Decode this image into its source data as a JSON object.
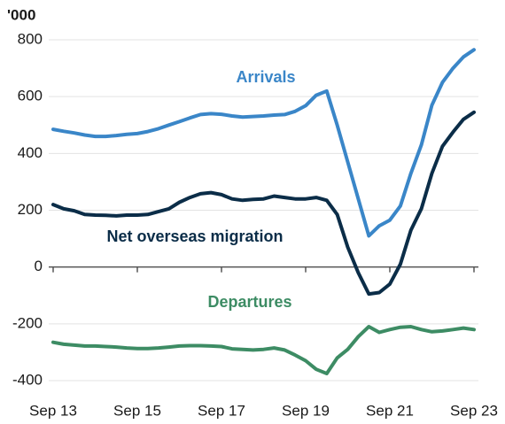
{
  "chart_data": {
    "type": "line",
    "y_label": "'000",
    "categories": [
      "Sep 13",
      null,
      null,
      null,
      null,
      null,
      null,
      null,
      "Sep 15",
      null,
      null,
      null,
      null,
      null,
      null,
      null,
      "Sep 17",
      null,
      null,
      null,
      null,
      null,
      null,
      null,
      "Sep 19",
      null,
      null,
      null,
      null,
      null,
      null,
      null,
      "Sep 21",
      null,
      null,
      null,
      null,
      null,
      null,
      null,
      "Sep 23"
    ],
    "series": [
      {
        "name": "Arrivals",
        "color": "#3a86c8",
        "values": [
          485,
          478,
          472,
          465,
          460,
          460,
          463,
          467,
          470,
          477,
          487,
          500,
          512,
          525,
          537,
          540,
          538,
          532,
          528,
          530,
          532,
          535,
          537,
          548,
          568,
          605,
          620,
          500,
          370,
          240,
          110,
          145,
          165,
          215,
          330,
          430,
          570,
          650,
          700,
          740,
          765
        ]
      },
      {
        "name": "Net overseas migration",
        "color": "#0b2d48",
        "values": [
          220,
          205,
          198,
          185,
          183,
          182,
          180,
          183,
          183,
          185,
          195,
          205,
          228,
          245,
          258,
          262,
          255,
          240,
          235,
          238,
          240,
          250,
          245,
          240,
          240,
          245,
          235,
          185,
          70,
          -20,
          -95,
          -90,
          -60,
          10,
          130,
          205,
          330,
          425,
          475,
          520,
          545
        ]
      },
      {
        "name": "Departures",
        "color": "#3d8c64",
        "values": [
          -265,
          -272,
          -275,
          -278,
          -278,
          -280,
          -282,
          -285,
          -287,
          -287,
          -285,
          -282,
          -278,
          -277,
          -277,
          -278,
          -280,
          -288,
          -290,
          -292,
          -290,
          -285,
          -292,
          -310,
          -330,
          -360,
          -375,
          -320,
          -290,
          -245,
          -210,
          -230,
          -220,
          -212,
          -210,
          -220,
          -228,
          -225,
          -220,
          -215,
          -220
        ]
      }
    ],
    "ylim": [
      -400,
      800
    ],
    "yticks": [
      -400,
      -200,
      0,
      200,
      400,
      600,
      800
    ],
    "grid": true
  }
}
